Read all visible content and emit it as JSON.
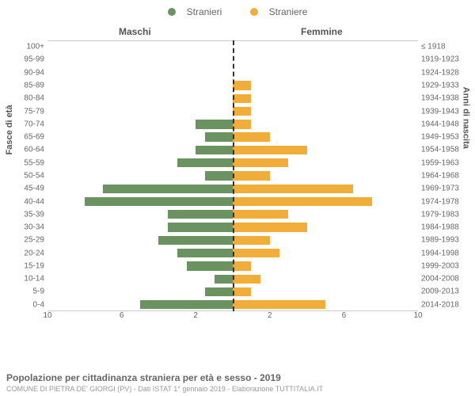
{
  "legend": {
    "male_label": "Stranieri",
    "female_label": "Straniere",
    "male_color": "#6b9362",
    "female_color": "#f0ad3a"
  },
  "headers": {
    "male": "Maschi",
    "female": "Femmine"
  },
  "axis_labels": {
    "left": "Fasce di età",
    "right": "Anni di nascita"
  },
  "chart": {
    "type": "population_pyramid",
    "x_max": 10,
    "x_tick_step": 2,
    "background_color": "#ffffff",
    "grid_color": "#cccccc",
    "center_line_color": "#333333",
    "bar_gap_pct": 15,
    "x_ticks_male": [
      "10",
      "6",
      "2"
    ],
    "x_ticks_female": [
      "2",
      "6",
      "10"
    ]
  },
  "rows": [
    {
      "age": "100+",
      "birth": "≤ 1918",
      "m": 0,
      "f": 0
    },
    {
      "age": "95-99",
      "birth": "1919-1923",
      "m": 0,
      "f": 0
    },
    {
      "age": "90-94",
      "birth": "1924-1928",
      "m": 0,
      "f": 0
    },
    {
      "age": "85-89",
      "birth": "1929-1933",
      "m": 0,
      "f": 1
    },
    {
      "age": "80-84",
      "birth": "1934-1938",
      "m": 0,
      "f": 1
    },
    {
      "age": "75-79",
      "birth": "1939-1943",
      "m": 0,
      "f": 1
    },
    {
      "age": "70-74",
      "birth": "1944-1948",
      "m": 2,
      "f": 1
    },
    {
      "age": "65-69",
      "birth": "1949-1953",
      "m": 1.5,
      "f": 2
    },
    {
      "age": "60-64",
      "birth": "1954-1958",
      "m": 2,
      "f": 4
    },
    {
      "age": "55-59",
      "birth": "1959-1963",
      "m": 3,
      "f": 3
    },
    {
      "age": "50-54",
      "birth": "1964-1968",
      "m": 1.5,
      "f": 2
    },
    {
      "age": "45-49",
      "birth": "1969-1973",
      "m": 7,
      "f": 6.5
    },
    {
      "age": "40-44",
      "birth": "1974-1978",
      "m": 8,
      "f": 7.5
    },
    {
      "age": "35-39",
      "birth": "1979-1983",
      "m": 3.5,
      "f": 3
    },
    {
      "age": "30-34",
      "birth": "1984-1988",
      "m": 3.5,
      "f": 4
    },
    {
      "age": "25-29",
      "birth": "1989-1993",
      "m": 4,
      "f": 2
    },
    {
      "age": "20-24",
      "birth": "1994-1998",
      "m": 3,
      "f": 2.5
    },
    {
      "age": "15-19",
      "birth": "1999-2003",
      "m": 2.5,
      "f": 1
    },
    {
      "age": "10-14",
      "birth": "2004-2008",
      "m": 1,
      "f": 1.5
    },
    {
      "age": "5-9",
      "birth": "2009-2013",
      "m": 1.5,
      "f": 1
    },
    {
      "age": "0-4",
      "birth": "2014-2018",
      "m": 5,
      "f": 5
    }
  ],
  "footer": {
    "title": "Popolazione per cittadinanza straniera per età e sesso - 2019",
    "source": "COMUNE DI PIETRA DE' GIORGI (PV) - Dati ISTAT 1° gennaio 2019 - Elaborazione TUTTITALIA.IT"
  }
}
